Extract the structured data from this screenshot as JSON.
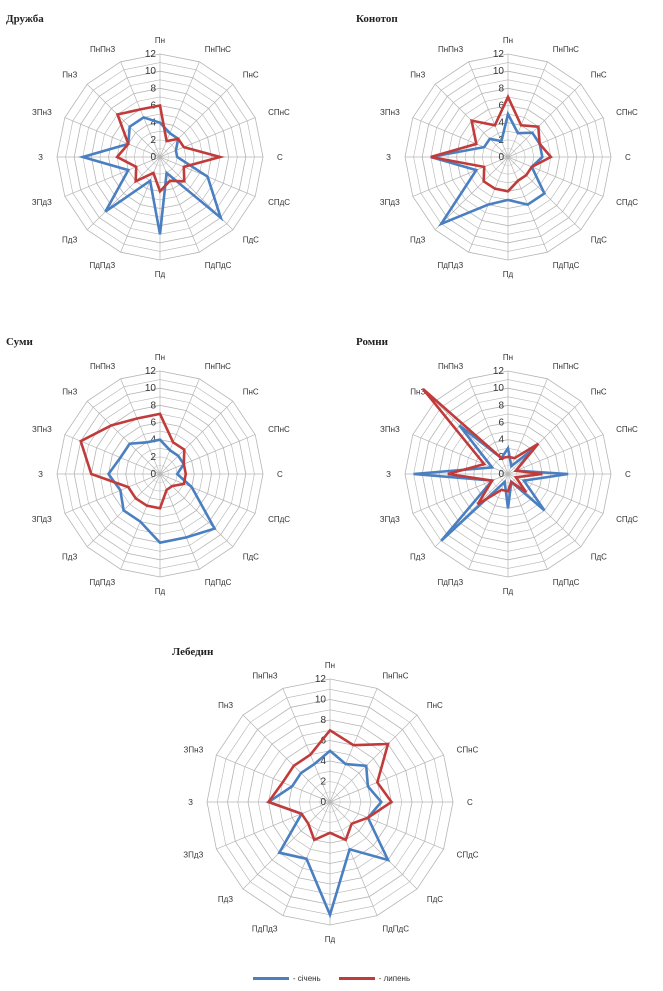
{
  "colors": {
    "series1": "#4a7fc1",
    "series2": "#c23b3b",
    "grid": "#b5b5b5",
    "inner_grid": "#cfcfcf",
    "text": "#222222"
  },
  "legend": [
    {
      "label": "- січень",
      "color": "#4a7fc1"
    },
    {
      "label": "- липень",
      "color": "#c23b3b"
    }
  ],
  "chart_data": [
    {
      "type": "radar",
      "title": "Дружба",
      "categories": [
        "Пн",
        "ПнПнС",
        "ПнС",
        "СПнС",
        "С",
        "СПдС",
        "ПдС",
        "ПдПдС",
        "Пд",
        "ПдПдЗ",
        "ПдЗ",
        "ЗПдЗ",
        "З",
        "ЗПнЗ",
        "ПнЗ",
        "ПнПнЗ"
      ],
      "ticks": [
        0,
        2,
        4,
        6,
        8,
        10,
        12
      ],
      "rlim": [
        0,
        12
      ],
      "series": [
        {
          "values": [
            4,
            3,
            3,
            2,
            2,
            6,
            10,
            2,
            9,
            3,
            9,
            4,
            9,
            4,
            5,
            5
          ]
        },
        {
          "values": [
            6,
            2,
            3,
            3,
            7,
            3,
            4,
            3,
            4,
            2,
            4,
            3,
            5,
            4,
            7,
            6
          ]
        }
      ]
    },
    {
      "type": "radar",
      "title": "Конотоп",
      "categories": [
        "Пн",
        "ПнПнС",
        "ПнС",
        "СПнС",
        "С",
        "СПдС",
        "ПдС",
        "ПдПдС",
        "Пд",
        "ПдПдЗ",
        "ПдЗ",
        "ЗПдЗ",
        "З",
        "ЗПнЗ",
        "ПнЗ",
        "ПнПнЗ"
      ],
      "ticks": [
        0,
        2,
        4,
        6,
        8,
        10,
        12
      ],
      "rlim": [
        0,
        12
      ],
      "series": [
        {
          "values": [
            5,
            3,
            4,
            4,
            4,
            3,
            6,
            6,
            5,
            6,
            11,
            4,
            9,
            3,
            3,
            2
          ]
        },
        {
          "values": [
            7,
            4,
            5,
            4,
            5,
            3,
            3,
            3,
            4,
            4,
            4,
            3,
            9,
            4,
            6,
            4
          ]
        }
      ]
    },
    {
      "type": "radar",
      "title": "Суми",
      "categories": [
        "Пн",
        "ПнПнС",
        "ПнС",
        "СПнС",
        "С",
        "СПдС",
        "ПдС",
        "ПдПдС",
        "Пд",
        "ПдПдЗ",
        "ПдЗ",
        "ЗПдЗ",
        "З",
        "ЗПнЗ",
        "ПнЗ",
        "ПнПнЗ"
      ],
      "ticks": [
        0,
        2,
        4,
        6,
        8,
        10,
        12
      ],
      "rlim": [
        0,
        12
      ],
      "series": [
        {
          "values": [
            4,
            3,
            3,
            3,
            2,
            4,
            9,
            8,
            8,
            6,
            6,
            5,
            6,
            5,
            5,
            4
          ]
        },
        {
          "values": [
            7,
            4,
            4,
            3,
            3,
            3,
            2,
            2,
            4,
            4,
            4,
            4,
            8,
            10,
            8,
            7
          ]
        }
      ]
    },
    {
      "type": "radar",
      "title": "Ромни",
      "categories": [
        "Пн",
        "ПнПнС",
        "ПнС",
        "СПнС",
        "С",
        "СПдС",
        "ПдС",
        "ПдПдС",
        "Пд",
        "ПдПдЗ",
        "ПдЗ",
        "ЗПдЗ",
        "З",
        "ЗПнЗ",
        "ПнЗ",
        "ПнПнЗ"
      ],
      "ticks": [
        0,
        2,
        4,
        6,
        8,
        10,
        12
      ],
      "rlim": [
        0,
        12
      ],
      "series": [
        {
          "values": [
            3,
            1,
            4,
            1,
            7,
            2,
            6,
            1,
            4,
            1,
            11,
            2,
            11,
            2,
            8,
            2
          ]
        },
        {
          "values": [
            2,
            2,
            5,
            1,
            4,
            1,
            3,
            1,
            2,
            2,
            5,
            2,
            7,
            3,
            14,
            2
          ]
        }
      ]
    },
    {
      "type": "radar",
      "title": "Лебедин",
      "categories": [
        "Пн",
        "ПнПнС",
        "ПнС",
        "СПнС",
        "С",
        "СПдС",
        "ПдС",
        "ПдПдС",
        "Пд",
        "ПдПдЗ",
        "ПдЗ",
        "ЗПдЗ",
        "З",
        "ЗПнЗ",
        "ПнЗ",
        "ПнПнЗ"
      ],
      "ticks": [
        0,
        2,
        4,
        6,
        8,
        10,
        12
      ],
      "rlim": [
        0,
        12
      ],
      "series": [
        {
          "values": [
            5,
            4,
            5,
            4,
            5,
            4,
            8,
            5,
            11,
            6,
            7,
            3,
            6,
            4,
            4,
            4
          ]
        },
        {
          "values": [
            7,
            6,
            8,
            5,
            6,
            4,
            3,
            4,
            3,
            4,
            3,
            3,
            6,
            5,
            5,
            5
          ]
        }
      ]
    }
  ]
}
